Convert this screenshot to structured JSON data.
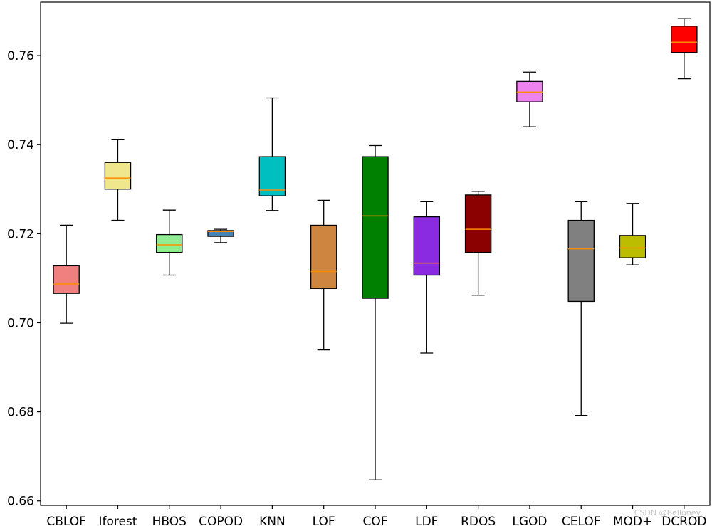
{
  "chart_data": {
    "type": "boxplot",
    "title": "",
    "xlabel": "",
    "ylabel": "",
    "ylim": [
      0.659,
      0.772
    ],
    "yticks": [
      0.66,
      0.68,
      0.7,
      0.72,
      0.74,
      0.76
    ],
    "ytick_labels": [
      "0.66",
      "0.68",
      "0.70",
      "0.72",
      "0.74",
      "0.76"
    ],
    "categories": [
      "CBLOF",
      "Iforest",
      "HBOS",
      "COPOD",
      "KNN",
      "LOF",
      "COF",
      "LDF",
      "RDOS",
      "LGOD",
      "CELOF",
      "MOD+",
      "DCROD"
    ],
    "colors": [
      "#f08080",
      "#f0e68c",
      "#90ee90",
      "#4682b4",
      "#00bfc0",
      "#cd853f",
      "#008000",
      "#8a2be2",
      "#8b0000",
      "#ee82ee",
      "#808080",
      "#bdbd00",
      "#ff0000"
    ],
    "median_color": "#ff8c00",
    "boxes": [
      {
        "label": "CBLOF",
        "whislo": 0.6999,
        "q1": 0.7066,
        "med": 0.7087,
        "q3": 0.7128,
        "whishi": 0.7219
      },
      {
        "label": "Iforest",
        "whislo": 0.723,
        "q1": 0.73,
        "med": 0.7325,
        "q3": 0.736,
        "whishi": 0.7412
      },
      {
        "label": "HBOS",
        "whislo": 0.7107,
        "q1": 0.7158,
        "med": 0.7175,
        "q3": 0.7198,
        "whishi": 0.7253
      },
      {
        "label": "COPOD",
        "whislo": 0.718,
        "q1": 0.7194,
        "med": 0.7205,
        "q3": 0.7207,
        "whishi": 0.721
      },
      {
        "label": "KNN",
        "whislo": 0.7252,
        "q1": 0.7285,
        "med": 0.7298,
        "q3": 0.7373,
        "whishi": 0.7505
      },
      {
        "label": "LOF",
        "whislo": 0.6939,
        "q1": 0.7077,
        "med": 0.7115,
        "q3": 0.7219,
        "whishi": 0.7275
      },
      {
        "label": "COF",
        "whislo": 0.6647,
        "q1": 0.7055,
        "med": 0.724,
        "q3": 0.7373,
        "whishi": 0.7398
      },
      {
        "label": "LDF",
        "whislo": 0.6932,
        "q1": 0.7107,
        "med": 0.7134,
        "q3": 0.7238,
        "whishi": 0.7272
      },
      {
        "label": "RDOS",
        "whislo": 0.7062,
        "q1": 0.7158,
        "med": 0.721,
        "q3": 0.7287,
        "whishi": 0.7295
      },
      {
        "label": "LGOD",
        "whislo": 0.744,
        "q1": 0.7496,
        "med": 0.7518,
        "q3": 0.7542,
        "whishi": 0.7563
      },
      {
        "label": "CELOF",
        "whislo": 0.6792,
        "q1": 0.7048,
        "med": 0.7166,
        "q3": 0.723,
        "whishi": 0.7272
      },
      {
        "label": "MOD+",
        "whislo": 0.713,
        "q1": 0.7146,
        "med": 0.7168,
        "q3": 0.7196,
        "whishi": 0.7268
      },
      {
        "label": "DCROD",
        "whislo": 0.7548,
        "q1": 0.7607,
        "med": 0.763,
        "q3": 0.7666,
        "whishi": 0.7683
      }
    ]
  },
  "watermark": "CSDN @Belloney"
}
